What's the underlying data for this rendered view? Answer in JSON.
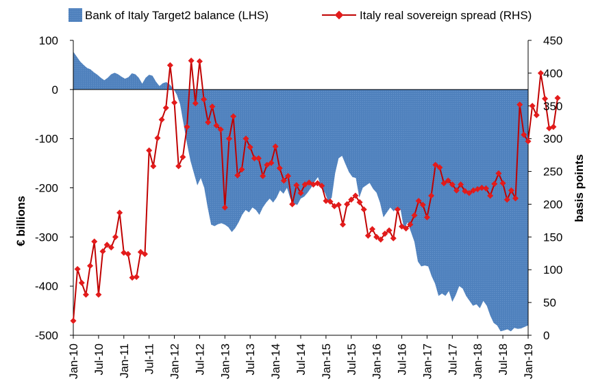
{
  "chart_data": {
    "type": "line",
    "title": "",
    "legend": {
      "position": "top",
      "entries": [
        "Bank of Italy Target2 balance (LHS)",
        "Italy real sovereign spread (RHS)"
      ]
    },
    "left_axis": {
      "label": "€ billions",
      "ylim": [
        -500,
        100
      ],
      "ticks": [
        100,
        0,
        -100,
        -200,
        -300,
        -400,
        -500
      ],
      "tick_labels": [
        "100",
        "0",
        "-100",
        "-200",
        "-300",
        "-400",
        "-500"
      ]
    },
    "right_axis": {
      "label": "basis points",
      "ylim": [
        0,
        450
      ],
      "ticks": [
        450,
        400,
        350,
        300,
        250,
        200,
        150,
        100,
        50,
        0
      ],
      "tick_labels": [
        "450",
        "400",
        "350",
        "300",
        "250",
        "200",
        "150",
        "100",
        "50",
        "0"
      ]
    },
    "x_axis": {
      "ticks": [
        "Jan-10",
        "Jul-10",
        "Jan-11",
        "Jul-11",
        "Jan-12",
        "Jul-12",
        "Jan-13",
        "Jul-13",
        "Jan-14",
        "Jul-14",
        "Jan-15",
        "Jul-15",
        "Jan-16",
        "Jul-16",
        "Jan-17",
        "Jul-17",
        "Jan-18",
        "Jul-18",
        "Jan-19"
      ]
    },
    "colors": {
      "area": "#4f81bd",
      "line": "#c00000",
      "marker": "#e31b1b"
    },
    "series": [
      {
        "name": "Bank of Italy Target2 balance (LHS)",
        "type": "area",
        "axis": "left",
        "start": "Jan-10",
        "values": [
          77,
          67,
          57,
          50,
          44,
          41,
          35,
          30,
          24,
          19,
          24,
          31,
          34,
          31,
          26,
          22,
          25,
          33,
          31,
          24,
          12,
          24,
          30,
          28,
          16,
          7,
          13,
          15,
          10,
          2,
          -10,
          -30,
          -70,
          -110,
          -145,
          -170,
          -195,
          -180,
          -200,
          -240,
          -275,
          -278,
          -274,
          -272,
          -275,
          -280,
          -290,
          -282,
          -270,
          -255,
          -245,
          -250,
          -240,
          -245,
          -255,
          -240,
          -230,
          -222,
          -230,
          -220,
          -205,
          -212,
          -200,
          -222,
          -232,
          -235,
          -222,
          -218,
          -210,
          -200,
          -188,
          -178,
          -200,
          -210,
          -228,
          -220,
          -170,
          -140,
          -135,
          -152,
          -168,
          -178,
          -180,
          -220,
          -200,
          -195,
          -190,
          -202,
          -210,
          -230,
          -260,
          -250,
          -240,
          -248,
          -238,
          -245,
          -285,
          -270,
          -290,
          -310,
          -350,
          -360,
          -358,
          -360,
          -380,
          -395,
          -420,
          -415,
          -420,
          -410,
          -432,
          -418,
          -400,
          -405,
          -420,
          -430,
          -440,
          -437,
          -445,
          -430,
          -440,
          -460,
          -475,
          -480,
          -492,
          -490,
          -488,
          -492,
          -485,
          -487,
          -486,
          -483,
          -480
        ]
      },
      {
        "name": "Italy real sovereign spread (RHS)",
        "type": "line",
        "axis": "right",
        "start": "Jan-10",
        "values": [
          22,
          101,
          80,
          62,
          106,
          143,
          62,
          128,
          138,
          134,
          150,
          187,
          126,
          124,
          88,
          89,
          127,
          124,
          282,
          258,
          301,
          329,
          347,
          412,
          355,
          258,
          272,
          318,
          419,
          354,
          418,
          360,
          325,
          349,
          320,
          314,
          195,
          300,
          334,
          244,
          253,
          300,
          287,
          270,
          270,
          243,
          260,
          263,
          288,
          255,
          236,
          243,
          200,
          229,
          217,
          230,
          233,
          230,
          232,
          228,
          205,
          204,
          197,
          199,
          169,
          200,
          207,
          213,
          203,
          192,
          152,
          162,
          150,
          146,
          155,
          160,
          148,
          192,
          166,
          163,
          169,
          183,
          205,
          199,
          180,
          213,
          260,
          256,
          232,
          236,
          230,
          221,
          230,
          220,
          217,
          221,
          223,
          225,
          224,
          213,
          231,
          247,
          232,
          207,
          221,
          209,
          352,
          306,
          296,
          350,
          336,
          400,
          361,
          316,
          318,
          362
        ]
      }
    ]
  }
}
